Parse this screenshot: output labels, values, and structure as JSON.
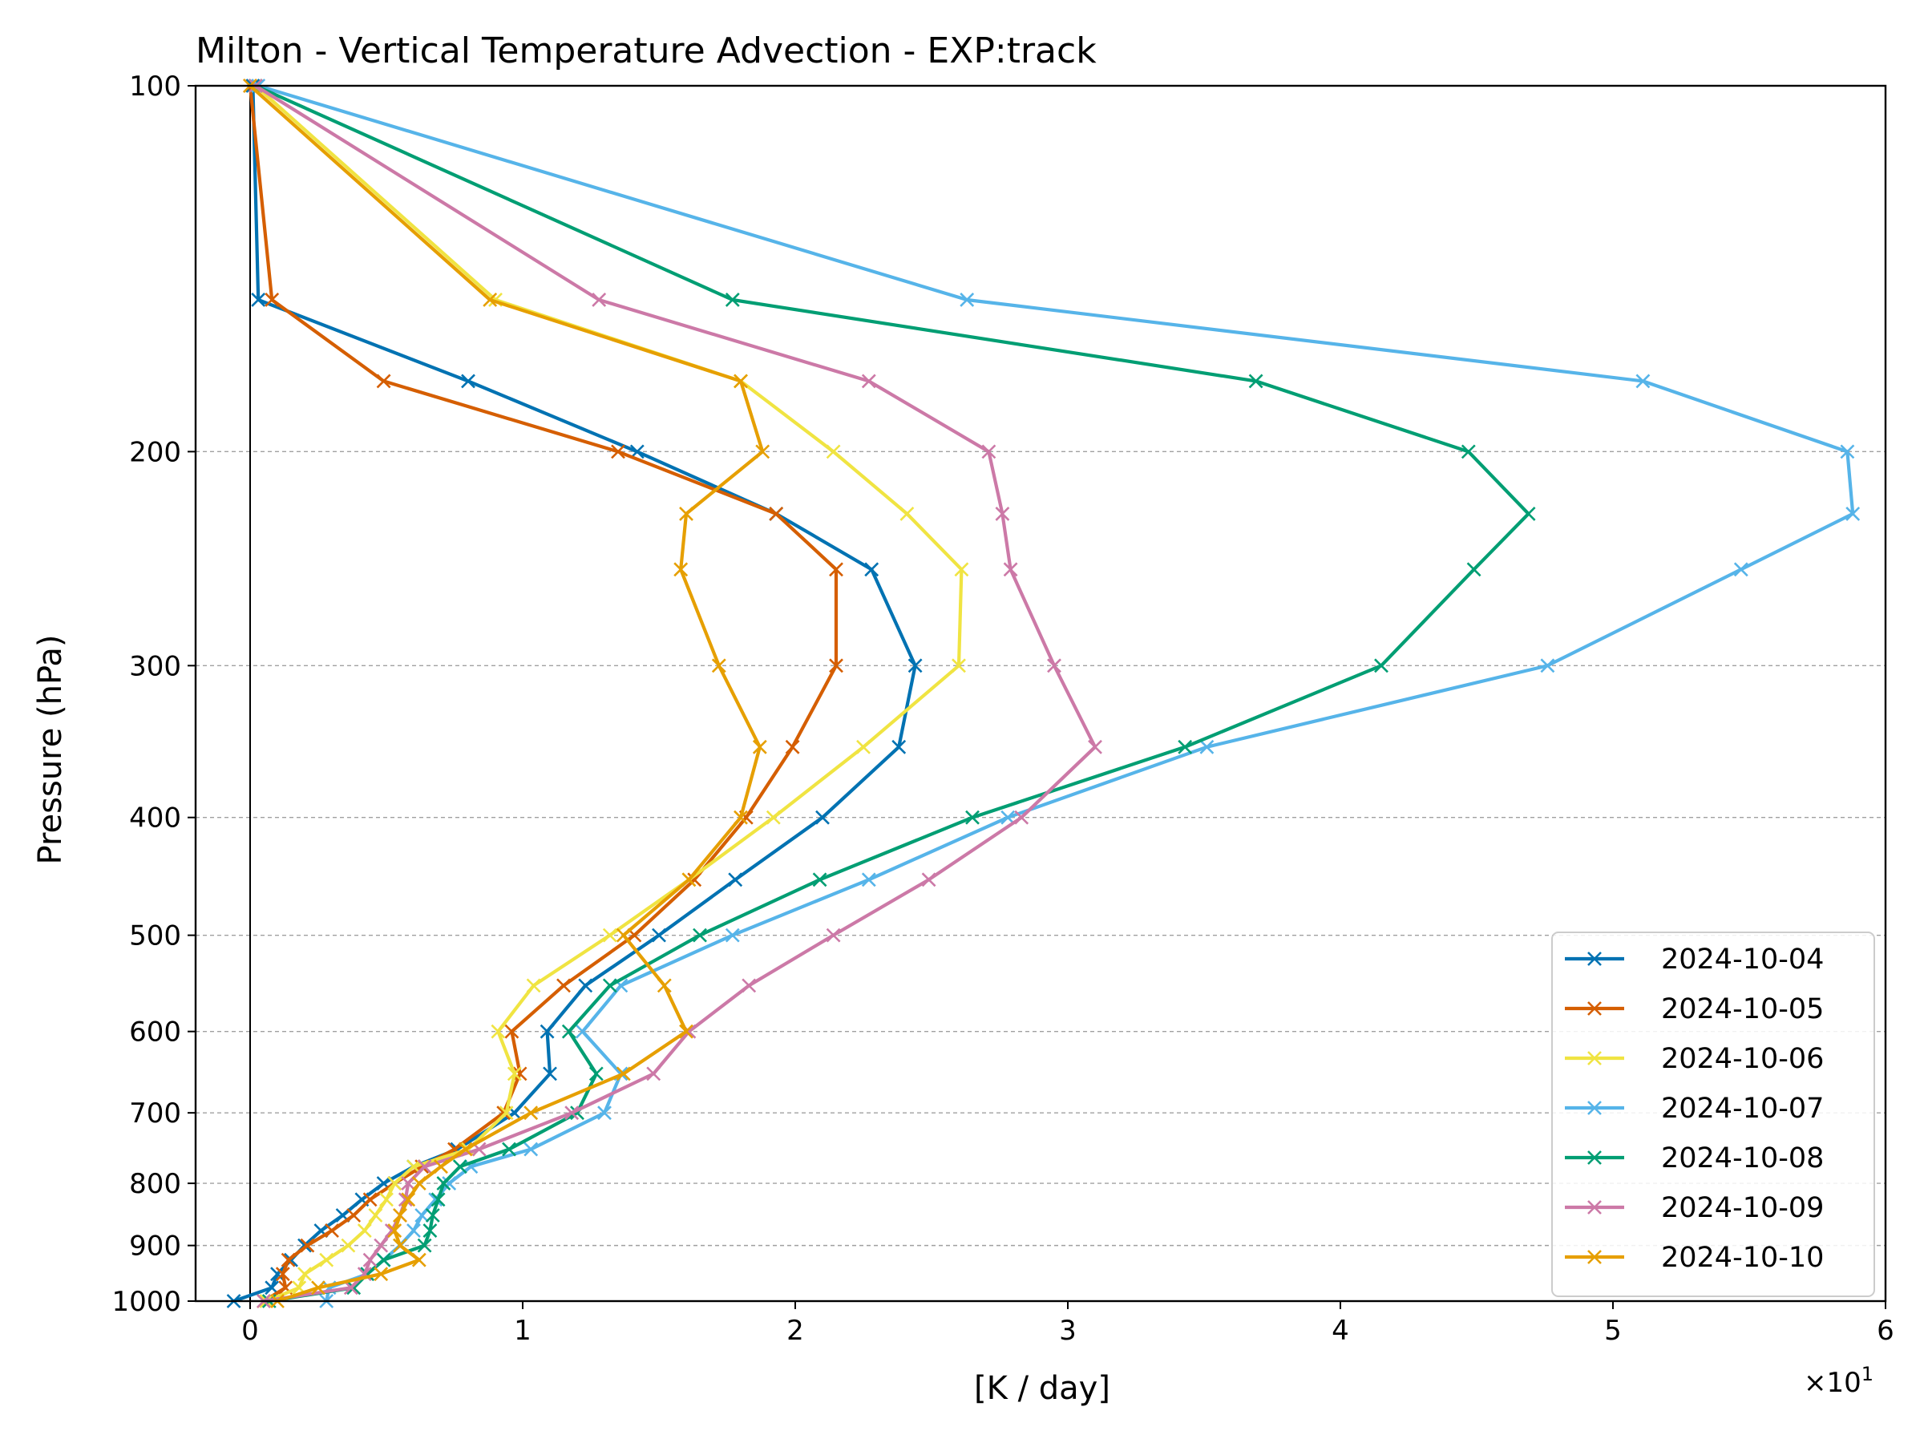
{
  "chart_data": {
    "type": "line",
    "title": "Milton - Vertical Temperature Advection - EXP:track",
    "xlabel": "[K / day]",
    "ylabel": "Pressure (hPa)",
    "x_multiplier_label": "×10",
    "x_multiplier_exponent": "1",
    "xlim": [
      -0.2,
      6
    ],
    "xticks": [
      0,
      1,
      2,
      3,
      4,
      5,
      6
    ],
    "xtick_labels": [
      "0",
      "1",
      "2",
      "3",
      "4",
      "5",
      "6"
    ],
    "ylim": [
      1000,
      100
    ],
    "yscale": "log",
    "yticks": [
      100,
      200,
      300,
      400,
      500,
      600,
      700,
      800,
      900,
      1000
    ],
    "ytick_labels": [
      "100",
      "200",
      "300",
      "400",
      "500",
      "600",
      "700",
      "800",
      "900",
      "1000"
    ],
    "grid": "horizontal dashed at y ticks",
    "legend_position": "bottom-right",
    "levels": [
      100,
      150,
      175,
      200,
      225,
      250,
      300,
      350,
      400,
      450,
      500,
      550,
      600,
      650,
      700,
      750,
      775,
      800,
      825,
      850,
      875,
      900,
      925,
      950,
      975,
      1000
    ],
    "series": [
      {
        "name": "2024-10-04",
        "color": "#0072B2",
        "values": [
          0.01,
          0.03,
          0.8,
          1.42,
          1.93,
          2.28,
          2.44,
          2.38,
          2.1,
          1.78,
          1.5,
          1.23,
          1.09,
          1.1,
          0.97,
          0.76,
          0.6,
          0.49,
          0.41,
          0.34,
          0.26,
          0.2,
          0.15,
          0.1,
          0.08,
          -0.06
        ]
      },
      {
        "name": "2024-10-05",
        "color": "#D55E00",
        "values": [
          0.0,
          0.08,
          0.49,
          1.35,
          1.93,
          2.15,
          2.15,
          1.99,
          1.82,
          1.63,
          1.41,
          1.15,
          0.96,
          0.99,
          0.93,
          0.75,
          0.63,
          0.53,
          0.44,
          0.38,
          0.3,
          0.21,
          0.14,
          0.12,
          0.13,
          0.05
        ]
      },
      {
        "name": "2024-10-06",
        "color": "#F0E442",
        "values": [
          0.02,
          0.9,
          1.8,
          2.14,
          2.41,
          2.61,
          2.6,
          2.25,
          1.92,
          1.61,
          1.32,
          1.04,
          0.91,
          0.97,
          0.94,
          0.8,
          0.6,
          0.53,
          0.5,
          0.46,
          0.42,
          0.36,
          0.28,
          0.2,
          0.18,
          0.06
        ]
      },
      {
        "name": "2024-10-07",
        "color": "#56B4E9",
        "values": [
          0.03,
          2.63,
          5.11,
          5.86,
          5.88,
          5.47,
          4.76,
          3.51,
          2.78,
          2.27,
          1.77,
          1.36,
          1.22,
          1.36,
          1.3,
          1.03,
          0.81,
          0.73,
          0.68,
          0.63,
          0.6,
          0.55,
          0.49,
          0.43,
          0.29,
          0.28
        ]
      },
      {
        "name": "2024-10-08",
        "color": "#009E73",
        "values": [
          0.02,
          1.77,
          3.69,
          4.47,
          4.69,
          4.49,
          4.15,
          3.43,
          2.65,
          2.09,
          1.65,
          1.32,
          1.17,
          1.27,
          1.2,
          0.95,
          0.77,
          0.71,
          0.69,
          0.67,
          0.66,
          0.64,
          0.49,
          0.43,
          0.38,
          0.07
        ]
      },
      {
        "name": "2024-10-09",
        "color": "#CC79A7",
        "values": [
          0.02,
          1.28,
          2.27,
          2.71,
          2.76,
          2.79,
          2.95,
          3.1,
          2.83,
          2.49,
          2.14,
          1.83,
          1.61,
          1.48,
          1.18,
          0.84,
          0.64,
          0.58,
          0.57,
          0.55,
          0.52,
          0.48,
          0.44,
          0.42,
          0.37,
          0.05
        ]
      },
      {
        "name": "2024-10-10",
        "color": "#E69F00",
        "values": [
          0.0,
          0.88,
          1.8,
          1.88,
          1.6,
          1.58,
          1.72,
          1.87,
          1.8,
          1.61,
          1.37,
          1.52,
          1.6,
          1.37,
          1.03,
          0.79,
          0.7,
          0.62,
          0.58,
          0.55,
          0.53,
          0.55,
          0.62,
          0.48,
          0.25,
          0.1
        ]
      }
    ]
  }
}
